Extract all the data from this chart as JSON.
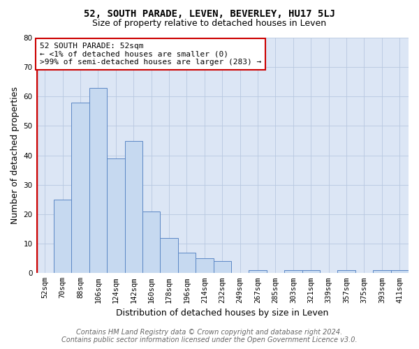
{
  "title": "52, SOUTH PARADE, LEVEN, BEVERLEY, HU17 5LJ",
  "subtitle": "Size of property relative to detached houses in Leven",
  "xlabel": "Distribution of detached houses by size in Leven",
  "ylabel": "Number of detached properties",
  "footnote": "Contains HM Land Registry data © Crown copyright and database right 2024.\nContains public sector information licensed under the Open Government Licence v3.0.",
  "categories": [
    "52sqm",
    "70sqm",
    "88sqm",
    "106sqm",
    "124sqm",
    "142sqm",
    "160sqm",
    "178sqm",
    "196sqm",
    "214sqm",
    "232sqm",
    "249sqm",
    "267sqm",
    "285sqm",
    "303sqm",
    "321sqm",
    "339sqm",
    "357sqm",
    "375sqm",
    "393sqm",
    "411sqm"
  ],
  "values": [
    0,
    25,
    58,
    63,
    39,
    45,
    21,
    12,
    7,
    5,
    4,
    0,
    1,
    0,
    1,
    1,
    0,
    1,
    0,
    1,
    1
  ],
  "highlight_index": 0,
  "bar_color": "#c6d9f0",
  "bar_edge_color": "#5b87c5",
  "highlight_color": "#cc0000",
  "annotation_box_color": "#ffffff",
  "annotation_box_edge_color": "#cc0000",
  "annotation_text_line1": "52 SOUTH PARADE: 52sqm",
  "annotation_text_line2": "← <1% of detached houses are smaller (0)",
  "annotation_text_line3": ">99% of semi-detached houses are larger (283) →",
  "ylim": [
    0,
    80
  ],
  "yticks": [
    0,
    10,
    20,
    30,
    40,
    50,
    60,
    70,
    80
  ],
  "bg_color": "#ffffff",
  "plot_bg_color": "#dce6f5",
  "grid_color": "#b8c8e0",
  "title_fontsize": 10,
  "subtitle_fontsize": 9,
  "axis_label_fontsize": 9,
  "tick_fontsize": 7.5,
  "annotation_fontsize": 8,
  "footnote_fontsize": 7
}
